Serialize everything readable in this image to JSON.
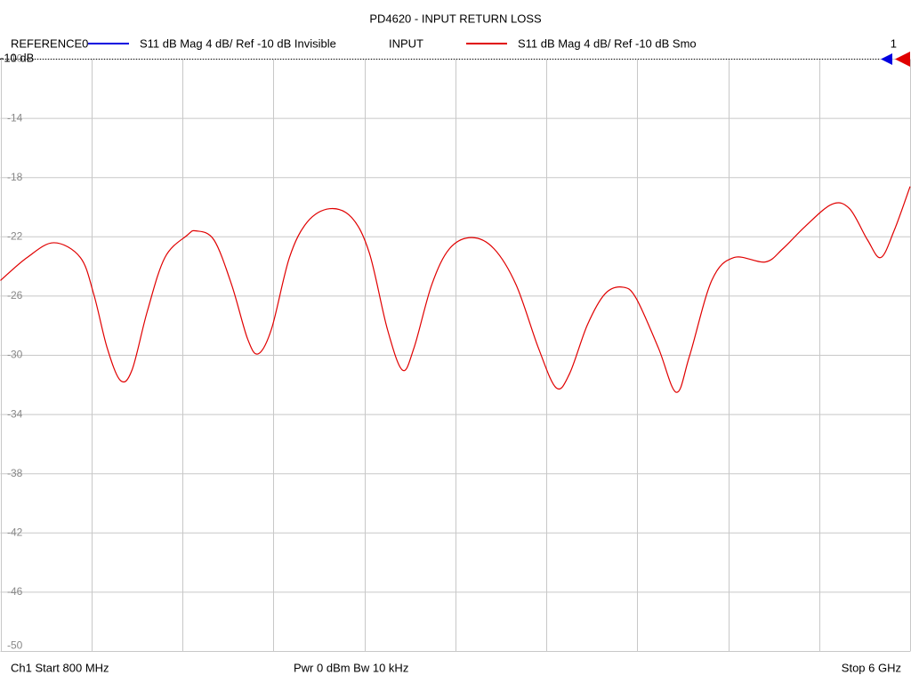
{
  "chart_data": {
    "type": "line",
    "title": "PD4620 - INPUT RETURN LOSS",
    "channel_number": "1",
    "reference_label": "-10 dB",
    "footer": {
      "start": "Ch1  Start  800 MHz",
      "power": "Pwr  0 dBm  Bw  10 kHz",
      "stop": "Stop  6 GHz"
    },
    "xlim": [
      800,
      6000
    ],
    "xticks": [
      800,
      1320,
      1840,
      2360,
      2880,
      3400,
      3920,
      4440,
      4960,
      5480,
      6000
    ],
    "ylim": [
      -10,
      -50
    ],
    "yticks": [
      -10,
      -14,
      -18,
      -22,
      -26,
      -30,
      -34,
      -38,
      -42,
      -46,
      -50
    ],
    "grid": true,
    "series": [
      {
        "name": "REFERENCE0",
        "trace": "S11  dB Mag  4 dB/ Ref -10 dB  Invisible",
        "color": "#0000e0"
      },
      {
        "name": "INPUT",
        "trace": "S11  dB Mag  4 dB/ Ref -10 dB  Smo",
        "color": "#e00000",
        "x": [
          800,
          952,
          1105,
          1257,
          1334,
          1410,
          1486,
          1552,
          1639,
          1740,
          1867,
          1918,
          2020,
          2122,
          2213,
          2274,
          2350,
          2452,
          2554,
          2681,
          2808,
          2909,
          3011,
          3098,
          3164,
          3265,
          3367,
          3494,
          3621,
          3748,
          3875,
          3977,
          4053,
          4155,
          4256,
          4358,
          4434,
          4561,
          4663,
          4739,
          4866,
          4993,
          5171,
          5273,
          5400,
          5553,
          5654,
          5756,
          5832,
          5908,
          6000
        ],
        "values": [
          -24.95,
          -23.4,
          -22.4,
          -23.4,
          -25.9,
          -29.5,
          -31.7,
          -31.0,
          -27.05,
          -23.4,
          -21.9,
          -21.6,
          -22.2,
          -25.25,
          -28.9,
          -29.9,
          -28.2,
          -23.4,
          -21.0,
          -20.1,
          -20.7,
          -23.1,
          -28.2,
          -31.0,
          -29.5,
          -25.25,
          -22.8,
          -22.05,
          -22.8,
          -25.25,
          -29.5,
          -32.2,
          -31.25,
          -27.95,
          -25.85,
          -25.4,
          -26.15,
          -29.5,
          -32.5,
          -30.05,
          -24.95,
          -23.4,
          -23.7,
          -22.8,
          -21.3,
          -19.8,
          -20.1,
          -22.2,
          -23.4,
          -21.6,
          -18.6
        ]
      }
    ]
  }
}
